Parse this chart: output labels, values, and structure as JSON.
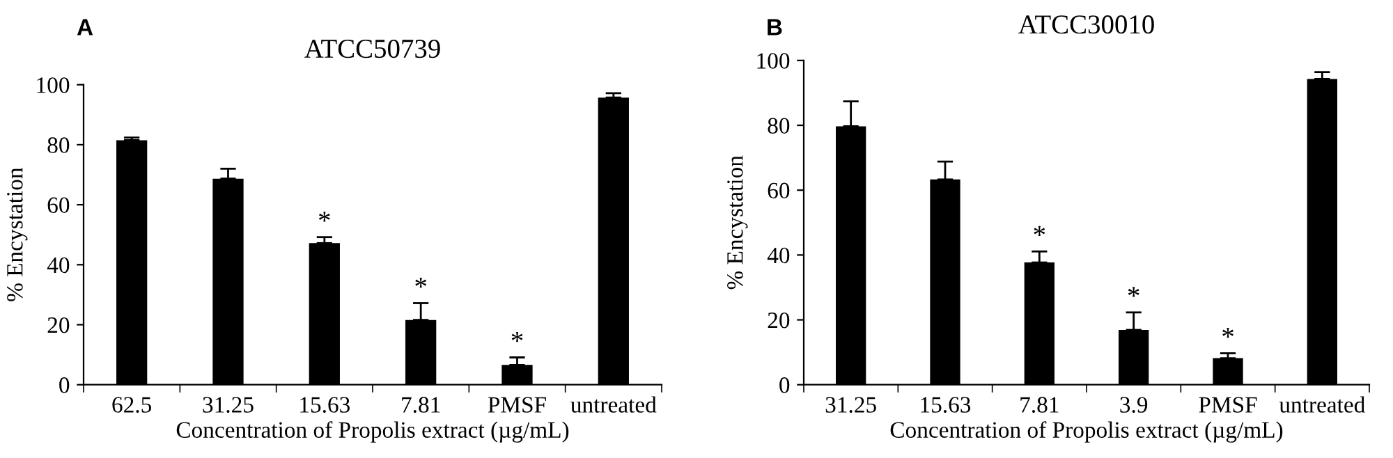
{
  "chart_data": [
    {
      "type": "bar",
      "title": "ATCC50739",
      "xlabel": "Concentration of Propolis extract (µg/mL)",
      "ylabel": "% Encystation",
      "categories": [
        "62.5",
        "31.25",
        "15.63",
        "7.81",
        "PMSF",
        "untreated"
      ],
      "values": [
        81.5,
        68.7,
        47.2,
        21.6,
        6.6,
        95.7
      ],
      "errors": [
        [
          81.5,
          82.4
        ],
        [
          68.7,
          72
        ],
        [
          47.2,
          49.2
        ],
        [
          21.6,
          27.2
        ],
        [
          6.6,
          9.1
        ],
        [
          95.7,
          97.2
        ]
      ],
      "color": "#000000",
      "ylim": [
        0,
        100
      ],
      "yticks": [
        0,
        20,
        40,
        60,
        80,
        100
      ],
      "grid": false,
      "legend": false,
      "annotations": [
        "A",
        {
          "text": "*",
          "x": "15.63",
          "y": 49.2
        },
        {
          "text": "*",
          "x": "7.81",
          "y": 27.2
        },
        {
          "text": "*",
          "x": "PMSF",
          "y": 9.1
        }
      ]
    },
    {
      "type": "bar",
      "title": "ATCC30010",
      "xlabel": "Concentration of Propolis extract (µg/mL)",
      "ylabel": "% Encystation",
      "categories": [
        "31.25",
        "15.63",
        "7.81",
        "3.9",
        "PMSF",
        "untreated"
      ],
      "values": [
        79.7,
        63.3,
        37.7,
        16.9,
        8.2,
        94.3
      ],
      "errors": [
        [
          79.7,
          87.4
        ],
        [
          63.3,
          68.8
        ],
        [
          37.7,
          41.1
        ],
        [
          16.9,
          22.3
        ],
        [
          8.2,
          9.7
        ],
        [
          94.3,
          96.4
        ]
      ],
      "color": "#000000",
      "ylim": [
        0,
        100
      ],
      "yticks": [
        0,
        20,
        40,
        60,
        80,
        100
      ],
      "grid": false,
      "legend": false,
      "annotations": [
        "B",
        {
          "text": "*",
          "x": "7.81",
          "y": 41.1
        },
        {
          "text": "*",
          "x": "3.9",
          "y": 22.3
        },
        {
          "text": "*",
          "x": "PMSF",
          "y": 9.7
        }
      ]
    }
  ]
}
